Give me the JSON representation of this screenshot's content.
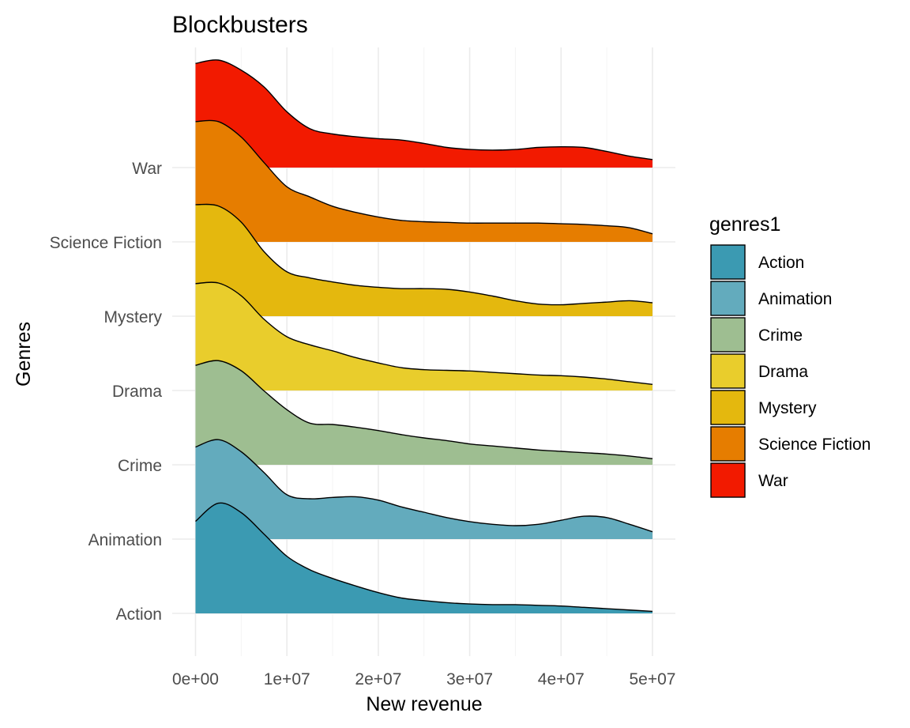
{
  "chart_data": {
    "type": "ridgeline",
    "title": "Blockbusters",
    "xlabel": "New revenue",
    "ylabel": "Genres",
    "xlim": [
      0,
      50000000
    ],
    "x_ticks": [
      0,
      10000000,
      20000000,
      30000000,
      40000000,
      50000000
    ],
    "x_tick_labels": [
      "0e+00",
      "1e+07",
      "2e+07",
      "3e+07",
      "4e+07",
      "5e+07"
    ],
    "categories": [
      "Action",
      "Animation",
      "Crime",
      "Drama",
      "Mystery",
      "Science Fiction",
      "War"
    ],
    "grid": true,
    "legend": {
      "title": "genres1",
      "position": "right",
      "entries": [
        "Action",
        "Animation",
        "Crime",
        "Drama",
        "Mystery",
        "Science Fiction",
        "War"
      ]
    },
    "x_grid": [
      0,
      2500000,
      5000000,
      7500000,
      10000000,
      12500000,
      15000000,
      17500000,
      20000000,
      22500000,
      25000000,
      27500000,
      30000000,
      32500000,
      35000000,
      37500000,
      40000000,
      42500000,
      45000000,
      47500000,
      50000000
    ],
    "series": [
      {
        "name": "Action",
        "color": "#3B9AB2",
        "density": [
          1.37,
          1.64,
          1.5,
          1.18,
          0.85,
          0.65,
          0.52,
          0.41,
          0.31,
          0.23,
          0.19,
          0.16,
          0.14,
          0.13,
          0.13,
          0.12,
          0.11,
          0.09,
          0.07,
          0.05,
          0.03
        ]
      },
      {
        "name": "Animation",
        "color": "#63ABBD",
        "density": [
          1.37,
          1.48,
          1.3,
          0.99,
          0.66,
          0.6,
          0.62,
          0.63,
          0.58,
          0.48,
          0.4,
          0.32,
          0.26,
          0.22,
          0.2,
          0.22,
          0.28,
          0.34,
          0.32,
          0.22,
          0.11
        ]
      },
      {
        "name": "Crime",
        "color": "#9EBE91",
        "density": [
          1.48,
          1.55,
          1.4,
          1.1,
          0.82,
          0.62,
          0.6,
          0.56,
          0.51,
          0.45,
          0.4,
          0.36,
          0.31,
          0.28,
          0.25,
          0.22,
          0.2,
          0.18,
          0.16,
          0.13,
          0.09
        ]
      },
      {
        "name": "Drama",
        "color": "#E9CD2C",
        "density": [
          1.59,
          1.6,
          1.41,
          1.06,
          0.8,
          0.68,
          0.59,
          0.49,
          0.41,
          0.34,
          0.31,
          0.3,
          0.29,
          0.27,
          0.25,
          0.23,
          0.22,
          0.2,
          0.17,
          0.13,
          0.09
        ]
      },
      {
        "name": "Mystery",
        "color": "#E4B80E",
        "density": [
          1.66,
          1.64,
          1.4,
          0.96,
          0.66,
          0.57,
          0.51,
          0.46,
          0.43,
          0.41,
          0.41,
          0.4,
          0.36,
          0.3,
          0.23,
          0.18,
          0.17,
          0.19,
          0.21,
          0.23,
          0.2
        ]
      },
      {
        "name": "Science Fiction",
        "color": "#E67D00",
        "density": [
          1.79,
          1.79,
          1.56,
          1.18,
          0.82,
          0.67,
          0.53,
          0.44,
          0.37,
          0.32,
          0.3,
          0.29,
          0.28,
          0.28,
          0.28,
          0.28,
          0.27,
          0.26,
          0.24,
          0.21,
          0.12
        ]
      },
      {
        "name": "War",
        "color": "#F21A00",
        "density": [
          1.55,
          1.6,
          1.45,
          1.2,
          0.83,
          0.58,
          0.5,
          0.46,
          0.43,
          0.41,
          0.36,
          0.3,
          0.27,
          0.26,
          0.27,
          0.3,
          0.31,
          0.3,
          0.24,
          0.17,
          0.12
        ]
      }
    ]
  }
}
